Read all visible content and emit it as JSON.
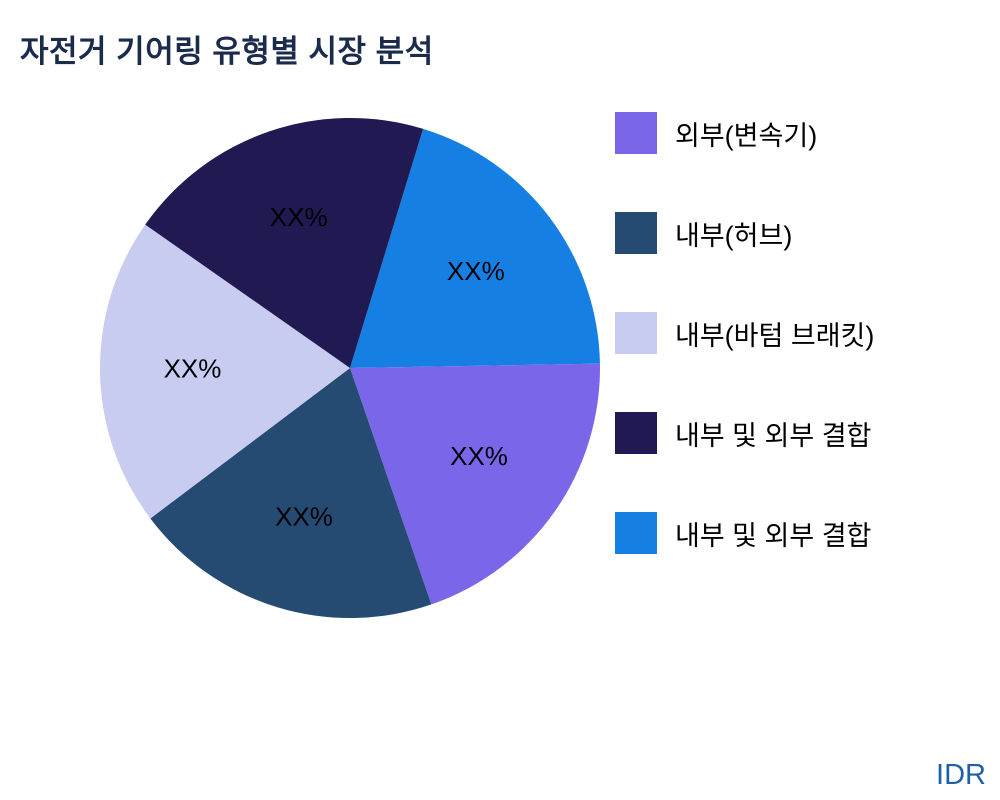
{
  "title": "자전거 기어링 유형별 시장 분석",
  "watermark": "IDR",
  "chart_data": {
    "type": "pie",
    "title": "자전거 기어링 유형별 시장 분석",
    "start_angle_deg": 17,
    "slices": [
      {
        "label": "내부 및 외부 결합",
        "value": 20,
        "display": "XX%",
        "color": "#157fe3"
      },
      {
        "label": "외부(변속기)",
        "value": 20,
        "display": "XX%",
        "color": "#7a66e8"
      },
      {
        "label": "내부(허브)",
        "value": 20,
        "display": "XX%",
        "color": "#254b73"
      },
      {
        "label": "내부(바텀 브래킷)",
        "value": 20,
        "display": "XX%",
        "color": "#c9ccf1"
      },
      {
        "label": "내부 및 외부 결합",
        "value": 20,
        "display": "XX%",
        "color": "#211a52"
      }
    ],
    "legend": [
      {
        "label": "외부(변속기)",
        "color": "#7a66e8"
      },
      {
        "label": "내부(허브)",
        "color": "#254b73"
      },
      {
        "label": "내부(바텀 브래킷)",
        "color": "#c9ccf1"
      },
      {
        "label": "내부 및 외부 결합",
        "color": "#211a52"
      },
      {
        "label": "내부 및 외부 결합",
        "color": "#157fe3"
      }
    ],
    "legend_position": "right",
    "values_hidden_as": "XX%"
  }
}
